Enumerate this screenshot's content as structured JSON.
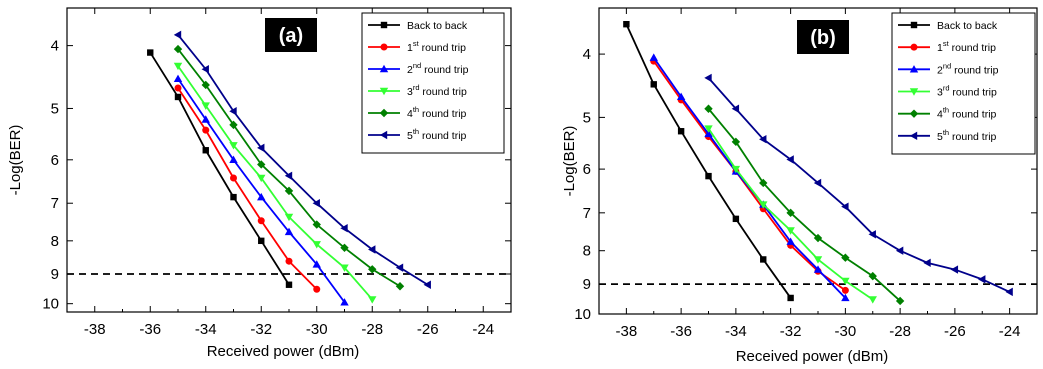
{
  "chart_data": [
    {
      "type": "line",
      "panel_label": "(a)",
      "xlabel": "Received power (dBm)",
      "ylabel": "-Log(BER)",
      "xlim": [
        -39,
        -23
      ],
      "ylim": [
        3.5,
        10.3
      ],
      "y_inverted": true,
      "y_scale": "log",
      "xticks": [
        -38,
        -36,
        -34,
        -32,
        -30,
        -28,
        -26,
        -24
      ],
      "yticks": [
        4,
        5,
        6,
        7,
        8,
        9,
        10
      ],
      "reference_line": {
        "y": 9,
        "style": "dashed"
      },
      "legend_position": "top-right",
      "series": [
        {
          "name": "Back to back",
          "superscript": "",
          "suffix": "",
          "color": "#000000",
          "marker": "square",
          "x": [
            -36,
            -35,
            -34,
            -33,
            -32,
            -31
          ],
          "y": [
            4.1,
            4.8,
            5.8,
            6.85,
            8.0,
            9.35
          ]
        },
        {
          "name": "1",
          "superscript": "st",
          "suffix": " round trip",
          "color": "#ff0000",
          "marker": "circle",
          "x": [
            -35,
            -34,
            -33,
            -32,
            -31,
            -30
          ],
          "y": [
            4.65,
            5.4,
            6.4,
            7.45,
            8.6,
            9.5
          ]
        },
        {
          "name": "2",
          "superscript": "nd",
          "suffix": " round trip",
          "color": "#0000ff",
          "marker": "triangle-up",
          "x": [
            -35,
            -34,
            -33,
            -32,
            -31,
            -30,
            -29
          ],
          "y": [
            4.5,
            5.2,
            6.0,
            6.85,
            7.75,
            8.7,
            9.95
          ]
        },
        {
          "name": "3",
          "superscript": "rd",
          "suffix": " round trip",
          "color": "#33ff33",
          "marker": "triangle-down",
          "x": [
            -35,
            -34,
            -33,
            -32,
            -31,
            -30,
            -29,
            -28
          ],
          "y": [
            4.3,
            4.95,
            5.7,
            6.4,
            7.35,
            8.1,
            8.8,
            9.85
          ]
        },
        {
          "name": "4",
          "superscript": "th",
          "suffix": " round trip",
          "color": "#008000",
          "marker": "diamond",
          "x": [
            -35,
            -34,
            -33,
            -32,
            -31,
            -30,
            -29,
            -28,
            -27
          ],
          "y": [
            4.05,
            4.6,
            5.3,
            6.1,
            6.7,
            7.55,
            8.2,
            8.85,
            9.4
          ]
        },
        {
          "name": "5",
          "superscript": "th",
          "suffix": " round trip",
          "color": "#00008b",
          "marker": "triangle-left",
          "x": [
            -35,
            -34,
            -33,
            -32,
            -31,
            -30,
            -29,
            -28,
            -27,
            -26
          ],
          "y": [
            3.85,
            4.35,
            5.05,
            5.75,
            6.35,
            7.0,
            7.65,
            8.25,
            8.8,
            9.35
          ]
        }
      ]
    },
    {
      "type": "line",
      "panel_label": "(b)",
      "xlabel": "Received power (dBm)",
      "ylabel": "-Log(BER)",
      "xlim": [
        -39,
        -23
      ],
      "ylim": [
        3.4,
        10.0
      ],
      "y_inverted": true,
      "y_scale": "log",
      "xticks": [
        -38,
        -36,
        -34,
        -32,
        -30,
        -28,
        -26,
        -24
      ],
      "yticks": [
        4,
        5,
        6,
        7,
        8,
        9,
        10
      ],
      "reference_line": {
        "y": 9,
        "style": "dashed"
      },
      "legend_position": "top-right",
      "series": [
        {
          "name": "Back to back",
          "superscript": "",
          "suffix": "",
          "color": "#000000",
          "marker": "square",
          "x": [
            -38,
            -37,
            -36,
            -35,
            -34,
            -33,
            -32
          ],
          "y": [
            3.6,
            4.45,
            5.25,
            6.15,
            7.15,
            8.25,
            9.45
          ]
        },
        {
          "name": "1",
          "superscript": "st",
          "suffix": " round trip",
          "color": "#ff0000",
          "marker": "circle",
          "x": [
            -37,
            -36,
            -35,
            -34,
            -33,
            -32,
            -31,
            -30
          ],
          "y": [
            4.1,
            4.7,
            5.35,
            6.05,
            6.9,
            7.85,
            8.6,
            9.2
          ]
        },
        {
          "name": "2",
          "superscript": "nd",
          "suffix": " round trip",
          "color": "#0000ff",
          "marker": "triangle-up",
          "x": [
            -37,
            -36,
            -35,
            -34,
            -33,
            -32,
            -31,
            -30
          ],
          "y": [
            4.05,
            4.65,
            5.3,
            6.05,
            6.8,
            7.75,
            8.55,
            9.45
          ]
        },
        {
          "name": "3",
          "superscript": "rd",
          "suffix": " round trip",
          "color": "#33ff33",
          "marker": "triangle-down",
          "x": [
            -35,
            -34,
            -33,
            -32,
            -31,
            -30,
            -29
          ],
          "y": [
            5.2,
            6.0,
            6.8,
            7.45,
            8.25,
            8.9,
            9.5
          ]
        },
        {
          "name": "4",
          "superscript": "th",
          "suffix": " round trip",
          "color": "#008000",
          "marker": "diamond",
          "x": [
            -35,
            -34,
            -33,
            -32,
            -31,
            -30,
            -29,
            -28
          ],
          "y": [
            4.85,
            5.45,
            6.3,
            7.0,
            7.65,
            8.2,
            8.75,
            9.55
          ]
        },
        {
          "name": "5",
          "superscript": "th",
          "suffix": " round trip",
          "color": "#00008b",
          "marker": "triangle-left",
          "x": [
            -35,
            -34,
            -33,
            -32,
            -31,
            -30,
            -29,
            -28,
            -27,
            -26,
            -25,
            -24
          ],
          "y": [
            4.35,
            4.85,
            5.4,
            5.8,
            6.3,
            6.85,
            7.55,
            8.0,
            8.35,
            8.55,
            8.85,
            9.25
          ]
        }
      ]
    }
  ]
}
